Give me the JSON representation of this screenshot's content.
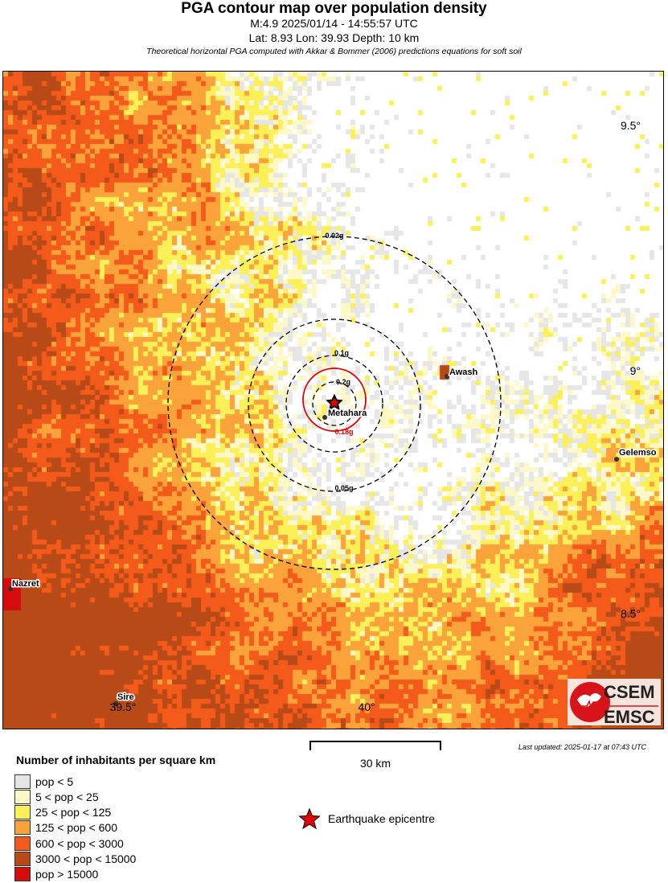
{
  "header": {
    "title": "PGA contour map over population density",
    "line1": "M:4.9 2025/01/14 - 14:55:57 UTC",
    "line2": "Lat: 8.93 Lon: 39.93 Depth: 10 km",
    "note": "Theoretical horizontal PGA computed with Akkar & Bommer (2006) predictions equations for soft soil"
  },
  "map": {
    "lat_ticks": [
      "9.5°",
      "9°",
      "8.5°"
    ],
    "lon_ticks": [
      "39.5°",
      "40°"
    ],
    "epicentre": {
      "lat": 8.93,
      "lon": 39.93
    },
    "contours": [
      {
        "label": "0.02g",
        "color": "#000000",
        "style": "dashed"
      },
      {
        "label": "0.05g",
        "color": "#000000",
        "style": "dashed"
      },
      {
        "label": "0.1g",
        "color": "#000000",
        "style": "dashed"
      },
      {
        "label": "0.2g",
        "color": "#000000",
        "style": "dashed"
      },
      {
        "label": "0.18g",
        "color": "#e00000",
        "style": "solid"
      }
    ],
    "cities": [
      "Awash",
      "Metahara",
      "Gelemso",
      "Nazret",
      "Sire"
    ],
    "logo": {
      "top": "CSEM",
      "bottom": "EMSC"
    }
  },
  "legend": {
    "title": "Number of inhabitants per square km",
    "items": [
      {
        "label": "pop < 5",
        "color": "#e6e6e6"
      },
      {
        "label": "5 < pop < 25",
        "color": "#fdf8c8"
      },
      {
        "label": "25 < pop < 125",
        "color": "#fcf058"
      },
      {
        "label": "125 < pop < 600",
        "color": "#f9a33a"
      },
      {
        "label": "600 < pop < 3000",
        "color": "#f45a1a"
      },
      {
        "label": "3000 < pop < 15000",
        "color": "#b84a18"
      },
      {
        "label": "pop > 15000",
        "color": "#d40c0c"
      }
    ],
    "epicentre_label": "Earthquake epicentre"
  },
  "scale": {
    "label": "30 km"
  },
  "updated": "Last updated: 2025-01-17 at 07:43 UTC"
}
